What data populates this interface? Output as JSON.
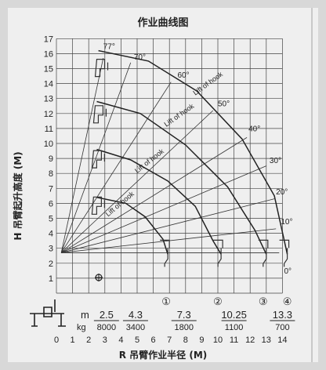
{
  "chart_data": {
    "type": "line",
    "title": "作业曲线图",
    "xlabel": "R 吊臂作业半径 (M)",
    "ylabel": "H 吊臂起升高度 (M)",
    "xlim": [
      0,
      14
    ],
    "ylim": [
      0,
      17
    ],
    "x_ticks": [
      0,
      1,
      2,
      3,
      4,
      5,
      6,
      7,
      8,
      9,
      10,
      11,
      12,
      13,
      14
    ],
    "y_ticks": [
      1,
      2,
      3,
      4,
      5,
      6,
      7,
      8,
      9,
      10,
      11,
      12,
      13,
      14,
      15,
      16,
      17
    ],
    "boom_angles": [
      "77°",
      "70°",
      "60°",
      "50°",
      "40°",
      "30°",
      "20°",
      "10°",
      "0°"
    ],
    "hook_label": "Lift of hook",
    "section_markers": [
      "①",
      "②",
      "③",
      "④"
    ],
    "load_table": {
      "unit_radius": "m",
      "unit_weight": "kg",
      "radius": [
        "2.5",
        "4.3",
        "7.3",
        "10.25",
        "13.3"
      ],
      "weight": [
        "8000",
        "3400",
        "1800",
        "1100",
        "700"
      ]
    },
    "series": [
      {
        "values": [
          [
            2.5,
            6.4
          ],
          [
            4.3,
            6.0
          ],
          [
            5.5,
            5.1
          ],
          [
            6.6,
            3.6
          ],
          [
            6.9,
            2.6
          ]
        ]
      },
      {
        "values": [
          [
            2.5,
            9.6
          ],
          [
            4.6,
            8.9
          ],
          [
            6.9,
            7.5
          ],
          [
            8.6,
            5.8
          ],
          [
            9.7,
            3.5
          ],
          [
            10.2,
            2.6
          ]
        ]
      },
      {
        "values": [
          [
            2.5,
            12.8
          ],
          [
            5.2,
            12.0
          ],
          [
            8.0,
            9.9
          ],
          [
            10.6,
            7.1
          ],
          [
            12.3,
            4.2
          ],
          [
            13.0,
            2.6
          ]
        ]
      },
      {
        "values": [
          [
            2.6,
            16.2
          ],
          [
            5.7,
            15.5
          ],
          [
            8.7,
            13.5
          ],
          [
            11.5,
            10.3
          ],
          [
            13.5,
            6.5
          ],
          [
            14.3,
            2.6
          ]
        ]
      }
    ]
  }
}
